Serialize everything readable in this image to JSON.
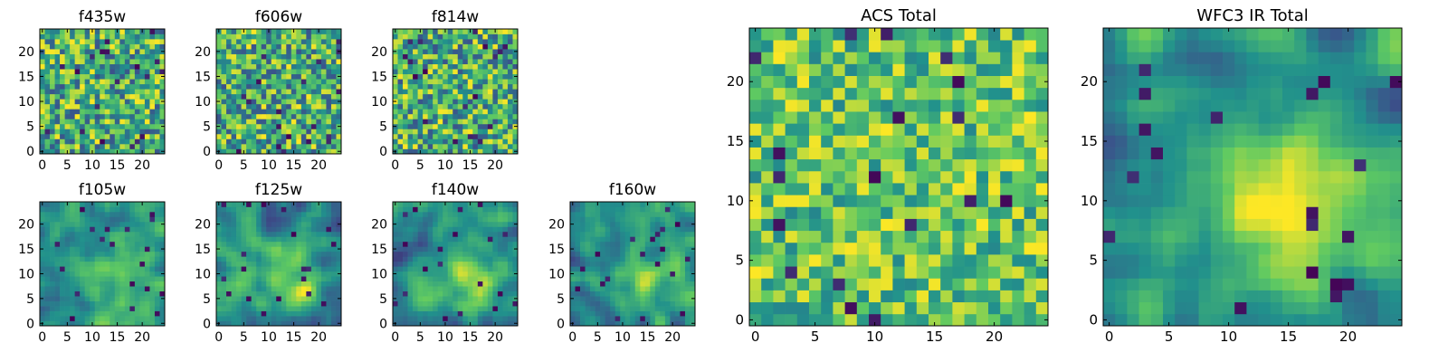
{
  "figure": {
    "title": "",
    "colormap": [
      "#440154",
      "#3b528b",
      "#21918c",
      "#5ec962",
      "#fde725"
    ]
  },
  "chart_data": [
    {
      "id": "f435w",
      "type": "heatmap",
      "title": "f435w",
      "grid_size": 25,
      "xticks": [
        0,
        5,
        10,
        15,
        20
      ],
      "yticks": [
        0,
        5,
        10,
        15,
        20
      ],
      "xlim": [
        -0.5,
        24.5
      ],
      "ylim": [
        -0.5,
        24.5
      ],
      "style": "noise",
      "seed": 11
    },
    {
      "id": "f606w",
      "type": "heatmap",
      "title": "f606w",
      "grid_size": 25,
      "xticks": [
        0,
        5,
        10,
        15,
        20
      ],
      "yticks": [
        0,
        5,
        10,
        15,
        20
      ],
      "xlim": [
        -0.5,
        24.5
      ],
      "ylim": [
        -0.5,
        24.5
      ],
      "style": "noise",
      "seed": 23
    },
    {
      "id": "f814w",
      "type": "heatmap",
      "title": "f814w",
      "grid_size": 25,
      "xticks": [
        0,
        5,
        10,
        15,
        20
      ],
      "yticks": [
        0,
        5,
        10,
        15,
        20
      ],
      "xlim": [
        -0.5,
        24.5
      ],
      "ylim": [
        -0.5,
        24.5
      ],
      "style": "noise",
      "seed": 37
    },
    {
      "id": "f105w",
      "type": "heatmap",
      "title": "f105w",
      "grid_size": 25,
      "xticks": [
        0,
        5,
        10,
        15,
        20
      ],
      "yticks": [
        0,
        5,
        10,
        15,
        20
      ],
      "xlim": [
        -0.5,
        24.5
      ],
      "ylim": [
        -0.5,
        24.5
      ],
      "style": "smooth",
      "seed": 41
    },
    {
      "id": "f125w",
      "type": "heatmap",
      "title": "f125w",
      "grid_size": 25,
      "xticks": [
        0,
        5,
        10,
        15,
        20
      ],
      "yticks": [
        0,
        5,
        10,
        15,
        20
      ],
      "xlim": [
        -0.5,
        24.5
      ],
      "ylim": [
        -0.5,
        24.5
      ],
      "style": "smooth",
      "seed": 53
    },
    {
      "id": "f140w",
      "type": "heatmap",
      "title": "f140w",
      "grid_size": 25,
      "xticks": [
        0,
        5,
        10,
        15,
        20
      ],
      "yticks": [
        0,
        5,
        10,
        15,
        20
      ],
      "xlim": [
        -0.5,
        24.5
      ],
      "ylim": [
        -0.5,
        24.5
      ],
      "style": "smooth",
      "seed": 67
    },
    {
      "id": "f160w",
      "type": "heatmap",
      "title": "f160w",
      "grid_size": 25,
      "xticks": [
        0,
        5,
        10,
        15,
        20
      ],
      "yticks": [
        0,
        5,
        10,
        15,
        20
      ],
      "xlim": [
        -0.5,
        24.5
      ],
      "ylim": [
        -0.5,
        24.5
      ],
      "style": "smooth",
      "seed": 79
    },
    {
      "id": "acs-total",
      "type": "heatmap",
      "title": "ACS Total",
      "grid_size": 25,
      "xticks": [
        0,
        5,
        10,
        15,
        20
      ],
      "yticks": [
        0,
        5,
        10,
        15,
        20
      ],
      "xlim": [
        -0.5,
        24.5
      ],
      "ylim": [
        -0.5,
        24.5
      ],
      "style": "noise-bright",
      "seed": 97
    },
    {
      "id": "wfc3-ir-total",
      "type": "heatmap",
      "title": "WFC3 IR Total",
      "grid_size": 25,
      "xticks": [
        0,
        5,
        10,
        15,
        20
      ],
      "yticks": [
        0,
        5,
        10,
        15,
        20
      ],
      "xlim": [
        -0.5,
        24.5
      ],
      "ylim": [
        -0.5,
        24.5
      ],
      "style": "smooth-blob",
      "seed": 113
    }
  ]
}
